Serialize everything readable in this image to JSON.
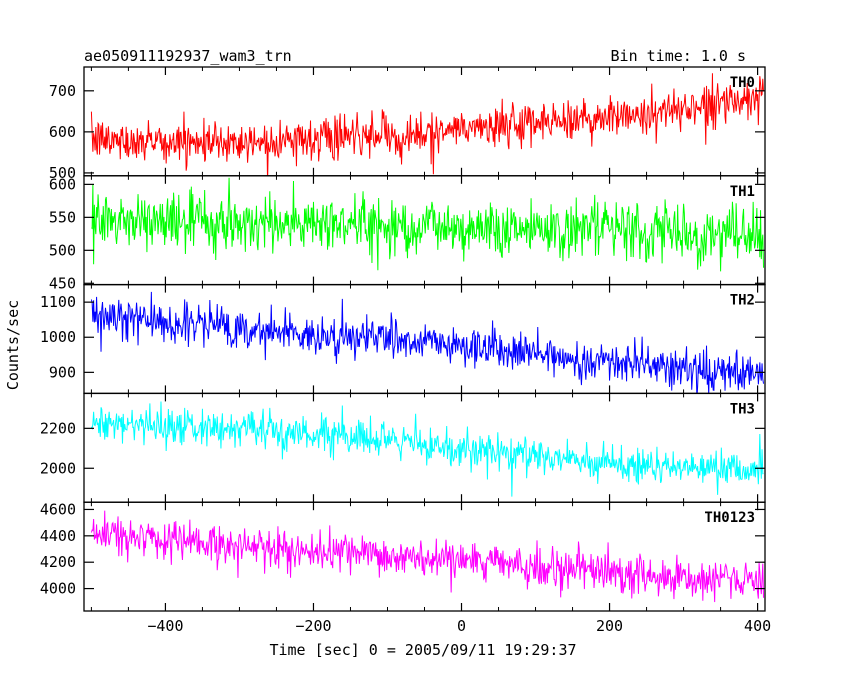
{
  "chart_data": {
    "type": "line",
    "title": "ae050911192937_wam3_trn",
    "bin_label": "Bin time: 1.0 s",
    "xlabel": "Time [sec] 0 = 2005/09/11 19:29:37",
    "ylabel": "Counts/sec",
    "xlim": [
      -510,
      410
    ],
    "x_ticks": [
      -400,
      -200,
      0,
      200,
      400
    ],
    "x_tick_labels": [
      "−400",
      "−200",
      "0",
      "200",
      "400"
    ],
    "bin_time": 1.0,
    "noise_seed": 12345,
    "panels": [
      {
        "name": "TH0",
        "color": "#ff0000",
        "ylim": [
          493,
          758
        ],
        "y_ticks": [
          500,
          600,
          700
        ],
        "x_start": -500,
        "x_end": 408,
        "trend": [
          [
            -500,
            580
          ],
          [
            -300,
            575
          ],
          [
            -100,
            590
          ],
          [
            0,
            605
          ],
          [
            100,
            620
          ],
          [
            250,
            645
          ],
          [
            408,
            685
          ]
        ],
        "noise_sd": 25,
        "spike_sd": 55
      },
      {
        "name": "TH1",
        "color": "#00ff00",
        "ylim": [
          448,
          613
        ],
        "y_ticks": [
          450,
          500,
          550,
          600
        ],
        "x_start": -500,
        "x_end": 408,
        "trend": [
          [
            -500,
            545
          ],
          [
            -200,
            540
          ],
          [
            100,
            535
          ],
          [
            408,
            520
          ]
        ],
        "noise_sd": 22,
        "spike_sd": 45
      },
      {
        "name": "TH2",
        "color": "#0000ff",
        "ylim": [
          840,
          1150
        ],
        "y_ticks": [
          900,
          1000,
          1100
        ],
        "x_start": -500,
        "x_end": 408,
        "trend": [
          [
            -500,
            1060
          ],
          [
            -300,
            1025
          ],
          [
            -100,
            995
          ],
          [
            100,
            950
          ],
          [
            300,
            910
          ],
          [
            408,
            890
          ]
        ],
        "noise_sd": 28,
        "spike_sd": 60
      },
      {
        "name": "TH3",
        "color": "#00ffff",
        "ylim": [
          1830,
          2375
        ],
        "y_ticks": [
          2000,
          2200
        ],
        "x_start": -500,
        "x_end": 408,
        "trend": [
          [
            -500,
            2230
          ],
          [
            -300,
            2200
          ],
          [
            -100,
            2130
          ],
          [
            100,
            2060
          ],
          [
            300,
            2000
          ],
          [
            408,
            1990
          ]
        ],
        "noise_sd": 45,
        "spike_sd": 95
      },
      {
        "name": "TH0123",
        "color": "#ff00ff",
        "ylim": [
          3830,
          4655
        ],
        "y_ticks": [
          4000,
          4200,
          4400,
          4600
        ],
        "x_start": -500,
        "x_end": 408,
        "trend": [
          [
            -500,
            4420
          ],
          [
            -300,
            4320
          ],
          [
            -100,
            4240
          ],
          [
            100,
            4170
          ],
          [
            300,
            4090
          ],
          [
            408,
            4050
          ]
        ],
        "noise_sd": 70,
        "spike_sd": 150
      }
    ]
  }
}
